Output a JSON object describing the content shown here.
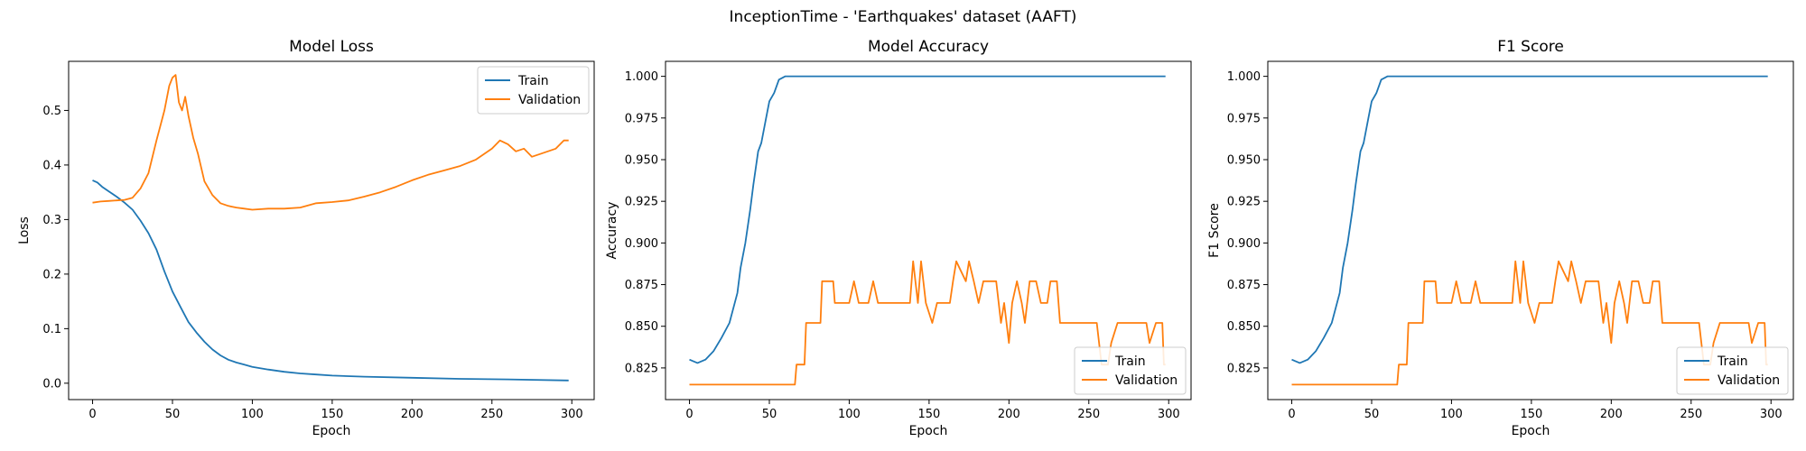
{
  "figure": {
    "suptitle": "InceptionTime - 'Earthquakes' dataset (AAFT)"
  },
  "colors": {
    "train": "#1f77b4",
    "validation": "#ff7f0e"
  },
  "chart_data": [
    {
      "type": "line",
      "title": "Model Loss",
      "xlabel": "Epoch",
      "ylabel": "Loss",
      "xlim": [
        -15,
        314
      ],
      "ylim": [
        -0.03,
        0.59
      ],
      "xticks": [
        0,
        50,
        100,
        150,
        200,
        250,
        300
      ],
      "yticks": [
        0.0,
        0.1,
        0.2,
        0.3,
        0.4,
        0.5
      ],
      "ytick_decimals": 1,
      "grid": false,
      "legend": "top-right",
      "series": [
        {
          "name": "Train",
          "points": [
            [
              0,
              0.372
            ],
            [
              3,
              0.368
            ],
            [
              6,
              0.36
            ],
            [
              10,
              0.352
            ],
            [
              15,
              0.342
            ],
            [
              20,
              0.331
            ],
            [
              25,
              0.318
            ],
            [
              30,
              0.298
            ],
            [
              35,
              0.275
            ],
            [
              40,
              0.245
            ],
            [
              45,
              0.205
            ],
            [
              50,
              0.168
            ],
            [
              55,
              0.14
            ],
            [
              60,
              0.112
            ],
            [
              65,
              0.093
            ],
            [
              70,
              0.076
            ],
            [
              75,
              0.062
            ],
            [
              80,
              0.051
            ],
            [
              85,
              0.043
            ],
            [
              90,
              0.038
            ],
            [
              95,
              0.034
            ],
            [
              100,
              0.03
            ],
            [
              110,
              0.025
            ],
            [
              120,
              0.021
            ],
            [
              130,
              0.018
            ],
            [
              140,
              0.016
            ],
            [
              150,
              0.014
            ],
            [
              170,
              0.012
            ],
            [
              200,
              0.01
            ],
            [
              230,
              0.008
            ],
            [
              260,
              0.007
            ],
            [
              298,
              0.005
            ]
          ]
        },
        {
          "name": "Validation",
          "points": [
            [
              0,
              0.331
            ],
            [
              5,
              0.333
            ],
            [
              10,
              0.334
            ],
            [
              15,
              0.335
            ],
            [
              20,
              0.336
            ],
            [
              25,
              0.34
            ],
            [
              30,
              0.357
            ],
            [
              35,
              0.385
            ],
            [
              40,
              0.445
            ],
            [
              45,
              0.5
            ],
            [
              48,
              0.545
            ],
            [
              50,
              0.56
            ],
            [
              52,
              0.565
            ],
            [
              54,
              0.515
            ],
            [
              56,
              0.5
            ],
            [
              58,
              0.525
            ],
            [
              60,
              0.49
            ],
            [
              63,
              0.45
            ],
            [
              66,
              0.42
            ],
            [
              70,
              0.37
            ],
            [
              75,
              0.345
            ],
            [
              80,
              0.33
            ],
            [
              85,
              0.325
            ],
            [
              90,
              0.322
            ],
            [
              95,
              0.32
            ],
            [
              100,
              0.318
            ],
            [
              110,
              0.32
            ],
            [
              120,
              0.32
            ],
            [
              130,
              0.322
            ],
            [
              140,
              0.33
            ],
            [
              150,
              0.332
            ],
            [
              160,
              0.335
            ],
            [
              170,
              0.342
            ],
            [
              180,
              0.35
            ],
            [
              190,
              0.36
            ],
            [
              200,
              0.372
            ],
            [
              210,
              0.382
            ],
            [
              220,
              0.39
            ],
            [
              230,
              0.398
            ],
            [
              240,
              0.41
            ],
            [
              250,
              0.43
            ],
            [
              255,
              0.445
            ],
            [
              260,
              0.438
            ],
            [
              265,
              0.425
            ],
            [
              270,
              0.43
            ],
            [
              275,
              0.415
            ],
            [
              280,
              0.42
            ],
            [
              285,
              0.425
            ],
            [
              290,
              0.43
            ],
            [
              295,
              0.445
            ],
            [
              298,
              0.445
            ]
          ]
        }
      ]
    },
    {
      "type": "line",
      "title": "Model Accuracy",
      "xlabel": "Epoch",
      "ylabel": "Accuracy",
      "xlim": [
        -15,
        314
      ],
      "ylim": [
        0.806,
        1.009
      ],
      "xticks": [
        0,
        50,
        100,
        150,
        200,
        250,
        300
      ],
      "yticks": [
        0.825,
        0.85,
        0.875,
        0.9,
        0.925,
        0.95,
        0.975,
        1.0
      ],
      "ytick_decimals": 3,
      "grid": false,
      "legend": "bottom-right",
      "series": [
        {
          "name": "Train",
          "points": [
            [
              0,
              0.83
            ],
            [
              5,
              0.828
            ],
            [
              10,
              0.83
            ],
            [
              15,
              0.835
            ],
            [
              20,
              0.843
            ],
            [
              25,
              0.852
            ],
            [
              30,
              0.87
            ],
            [
              32,
              0.885
            ],
            [
              35,
              0.9
            ],
            [
              38,
              0.92
            ],
            [
              40,
              0.935
            ],
            [
              43,
              0.955
            ],
            [
              45,
              0.96
            ],
            [
              48,
              0.975
            ],
            [
              50,
              0.985
            ],
            [
              53,
              0.99
            ],
            [
              56,
              0.998
            ],
            [
              60,
              1.0
            ],
            [
              80,
              1.0
            ],
            [
              150,
              1.0
            ],
            [
              200,
              1.0
            ],
            [
              298,
              1.0
            ]
          ]
        },
        {
          "name": "Validation",
          "points": [
            [
              0,
              0.815
            ],
            [
              30,
              0.815
            ],
            [
              66,
              0.815
            ],
            [
              67,
              0.827
            ],
            [
              72,
              0.827
            ],
            [
              73,
              0.852
            ],
            [
              82,
              0.852
            ],
            [
              83,
              0.877
            ],
            [
              90,
              0.877
            ],
            [
              91,
              0.864
            ],
            [
              100,
              0.864
            ],
            [
              103,
              0.877
            ],
            [
              106,
              0.864
            ],
            [
              112,
              0.864
            ],
            [
              115,
              0.877
            ],
            [
              118,
              0.864
            ],
            [
              138,
              0.864
            ],
            [
              140,
              0.889
            ],
            [
              143,
              0.864
            ],
            [
              145,
              0.889
            ],
            [
              148,
              0.864
            ],
            [
              152,
              0.852
            ],
            [
              155,
              0.864
            ],
            [
              163,
              0.864
            ],
            [
              165,
              0.877
            ],
            [
              167,
              0.889
            ],
            [
              173,
              0.877
            ],
            [
              175,
              0.889
            ],
            [
              178,
              0.877
            ],
            [
              181,
              0.864
            ],
            [
              184,
              0.877
            ],
            [
              192,
              0.877
            ],
            [
              195,
              0.852
            ],
            [
              197,
              0.864
            ],
            [
              200,
              0.84
            ],
            [
              202,
              0.864
            ],
            [
              205,
              0.877
            ],
            [
              208,
              0.864
            ],
            [
              210,
              0.852
            ],
            [
              213,
              0.877
            ],
            [
              217,
              0.877
            ],
            [
              220,
              0.864
            ],
            [
              224,
              0.864
            ],
            [
              226,
              0.877
            ],
            [
              230,
              0.877
            ],
            [
              232,
              0.852
            ],
            [
              255,
              0.852
            ],
            [
              258,
              0.827
            ],
            [
              262,
              0.827
            ],
            [
              264,
              0.84
            ],
            [
              268,
              0.852
            ],
            [
              286,
              0.852
            ],
            [
              288,
              0.84
            ],
            [
              292,
              0.852
            ],
            [
              296,
              0.852
            ],
            [
              297,
              0.827
            ],
            [
              298,
              0.827
            ]
          ]
        }
      ]
    },
    {
      "type": "line",
      "title": "F1 Score",
      "xlabel": "Epoch",
      "ylabel": "F1 Score",
      "xlim": [
        -15,
        314
      ],
      "ylim": [
        0.806,
        1.009
      ],
      "xticks": [
        0,
        50,
        100,
        150,
        200,
        250,
        300
      ],
      "yticks": [
        0.825,
        0.85,
        0.875,
        0.9,
        0.925,
        0.95,
        0.975,
        1.0
      ],
      "ytick_decimals": 3,
      "grid": false,
      "legend": "bottom-right",
      "series": [
        {
          "name": "Train",
          "points": [
            [
              0,
              0.83
            ],
            [
              5,
              0.828
            ],
            [
              10,
              0.83
            ],
            [
              15,
              0.835
            ],
            [
              20,
              0.843
            ],
            [
              25,
              0.852
            ],
            [
              30,
              0.87
            ],
            [
              32,
              0.885
            ],
            [
              35,
              0.9
            ],
            [
              38,
              0.92
            ],
            [
              40,
              0.935
            ],
            [
              43,
              0.955
            ],
            [
              45,
              0.96
            ],
            [
              48,
              0.975
            ],
            [
              50,
              0.985
            ],
            [
              53,
              0.99
            ],
            [
              56,
              0.998
            ],
            [
              60,
              1.0
            ],
            [
              80,
              1.0
            ],
            [
              150,
              1.0
            ],
            [
              200,
              1.0
            ],
            [
              298,
              1.0
            ]
          ]
        },
        {
          "name": "Validation",
          "points": [
            [
              0,
              0.815
            ],
            [
              30,
              0.815
            ],
            [
              66,
              0.815
            ],
            [
              67,
              0.827
            ],
            [
              72,
              0.827
            ],
            [
              73,
              0.852
            ],
            [
              82,
              0.852
            ],
            [
              83,
              0.877
            ],
            [
              90,
              0.877
            ],
            [
              91,
              0.864
            ],
            [
              100,
              0.864
            ],
            [
              103,
              0.877
            ],
            [
              106,
              0.864
            ],
            [
              112,
              0.864
            ],
            [
              115,
              0.877
            ],
            [
              118,
              0.864
            ],
            [
              138,
              0.864
            ],
            [
              140,
              0.889
            ],
            [
              143,
              0.864
            ],
            [
              145,
              0.889
            ],
            [
              148,
              0.864
            ],
            [
              152,
              0.852
            ],
            [
              155,
              0.864
            ],
            [
              163,
              0.864
            ],
            [
              165,
              0.877
            ],
            [
              167,
              0.889
            ],
            [
              173,
              0.877
            ],
            [
              175,
              0.889
            ],
            [
              178,
              0.877
            ],
            [
              181,
              0.864
            ],
            [
              184,
              0.877
            ],
            [
              192,
              0.877
            ],
            [
              195,
              0.852
            ],
            [
              197,
              0.864
            ],
            [
              200,
              0.84
            ],
            [
              202,
              0.864
            ],
            [
              205,
              0.877
            ],
            [
              208,
              0.864
            ],
            [
              210,
              0.852
            ],
            [
              213,
              0.877
            ],
            [
              217,
              0.877
            ],
            [
              220,
              0.864
            ],
            [
              224,
              0.864
            ],
            [
              226,
              0.877
            ],
            [
              230,
              0.877
            ],
            [
              232,
              0.852
            ],
            [
              255,
              0.852
            ],
            [
              258,
              0.827
            ],
            [
              262,
              0.827
            ],
            [
              264,
              0.84
            ],
            [
              268,
              0.852
            ],
            [
              286,
              0.852
            ],
            [
              288,
              0.84
            ],
            [
              292,
              0.852
            ],
            [
              296,
              0.852
            ],
            [
              297,
              0.827
            ],
            [
              298,
              0.827
            ]
          ]
        }
      ]
    }
  ]
}
